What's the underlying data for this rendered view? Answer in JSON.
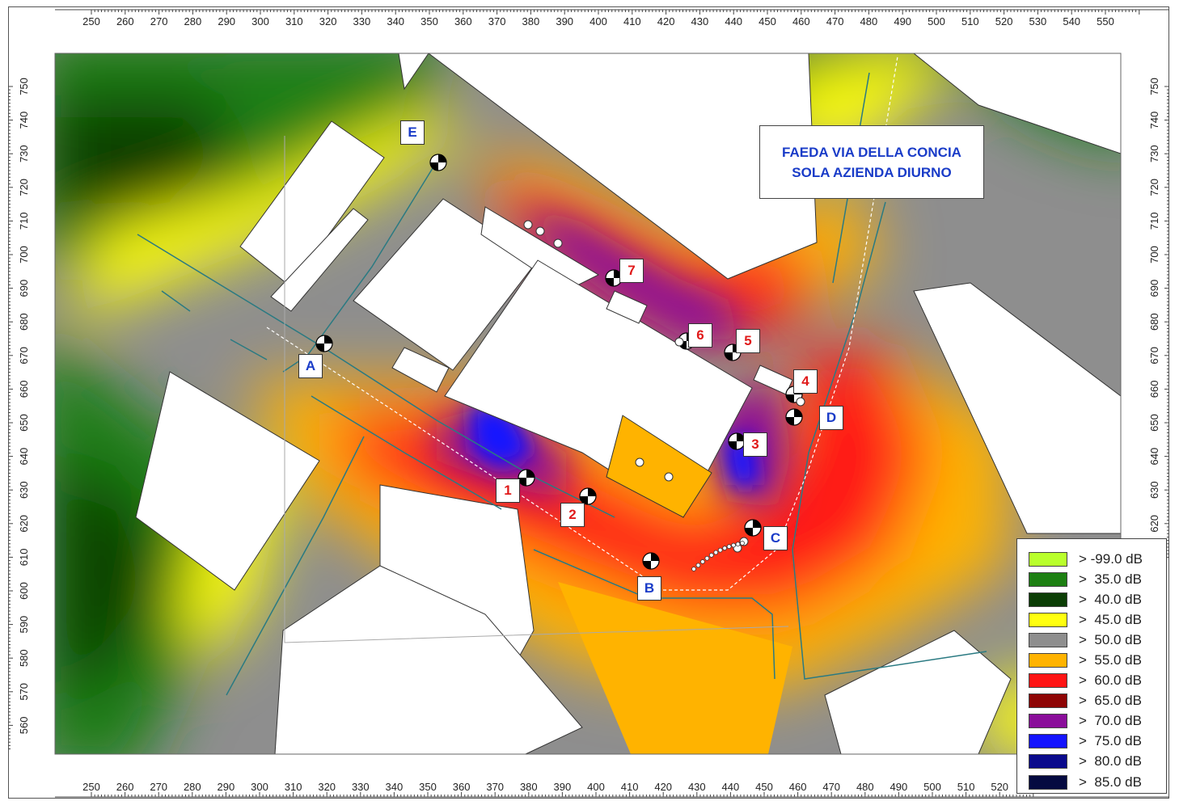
{
  "title": {
    "line1": "FAEDA VIA DELLA CONCIA",
    "line2": "SOLA AZIENDA DIURNO"
  },
  "axes": {
    "top_ticks": [
      "250",
      "260",
      "270",
      "280",
      "290",
      "300",
      "310",
      "320",
      "330",
      "340",
      "350",
      "360",
      "370",
      "380",
      "390",
      "400",
      "410",
      "420",
      "430",
      "440",
      "450",
      "460",
      "470",
      "480",
      "490",
      "500",
      "510",
      "520",
      "530",
      "540",
      "550"
    ],
    "bottom_ticks": [
      "250",
      "260",
      "270",
      "280",
      "290",
      "300",
      "310",
      "320",
      "330",
      "340",
      "350",
      "360",
      "370",
      "380",
      "390",
      "400",
      "410",
      "420",
      "430",
      "440",
      "450",
      "460",
      "470",
      "480",
      "490",
      "500",
      "510",
      "520"
    ],
    "left_ticks": [
      "750",
      "740",
      "730",
      "720",
      "710",
      "700",
      "690",
      "680",
      "670",
      "660",
      "650",
      "640",
      "630",
      "620",
      "610",
      "600",
      "590",
      "580",
      "570",
      "560"
    ],
    "right_ticks": [
      "750",
      "740",
      "730",
      "720",
      "710",
      "700",
      "690",
      "680",
      "670",
      "660",
      "650",
      "640",
      "630",
      "620"
    ]
  },
  "legend": [
    {
      "label": "> -99.0 dB",
      "color": "#b9ff2c"
    },
    {
      "label": ">  35.0 dB",
      "color": "#1c7f12"
    },
    {
      "label": ">  40.0 dB",
      "color": "#0b3d05"
    },
    {
      "label": ">  45.0 dB",
      "color": "#ffff10"
    },
    {
      "label": ">  50.0 dB",
      "color": "#8e8e8e"
    },
    {
      "label": ">  55.0 dB",
      "color": "#ffb300"
    },
    {
      "label": ">  60.0 dB",
      "color": "#ff1414"
    },
    {
      "label": ">  65.0 dB",
      "color": "#8e0505"
    },
    {
      "label": ">  70.0 dB",
      "color": "#8a0e9a"
    },
    {
      "label": ">  75.0 dB",
      "color": "#1414ff"
    },
    {
      "label": ">  80.0 dB",
      "color": "#0a0a8c"
    },
    {
      "label": ">  85.0 dB",
      "color": "#050a40"
    }
  ],
  "receptors": [
    {
      "id": "r1",
      "label": "1",
      "kind": "num"
    },
    {
      "id": "r2",
      "label": "2",
      "kind": "num"
    },
    {
      "id": "r3",
      "label": "3",
      "kind": "num"
    },
    {
      "id": "r4",
      "label": "4",
      "kind": "num"
    },
    {
      "id": "r5",
      "label": "5",
      "kind": "num"
    },
    {
      "id": "r6",
      "label": "6",
      "kind": "num"
    },
    {
      "id": "r7",
      "label": "7",
      "kind": "num"
    },
    {
      "id": "rA",
      "label": "A",
      "kind": "let"
    },
    {
      "id": "rB",
      "label": "B",
      "kind": "let"
    },
    {
      "id": "rC",
      "label": "C",
      "kind": "let"
    },
    {
      "id": "rD",
      "label": "D",
      "kind": "let"
    },
    {
      "id": "rE",
      "label": "E",
      "kind": "let"
    }
  ]
}
